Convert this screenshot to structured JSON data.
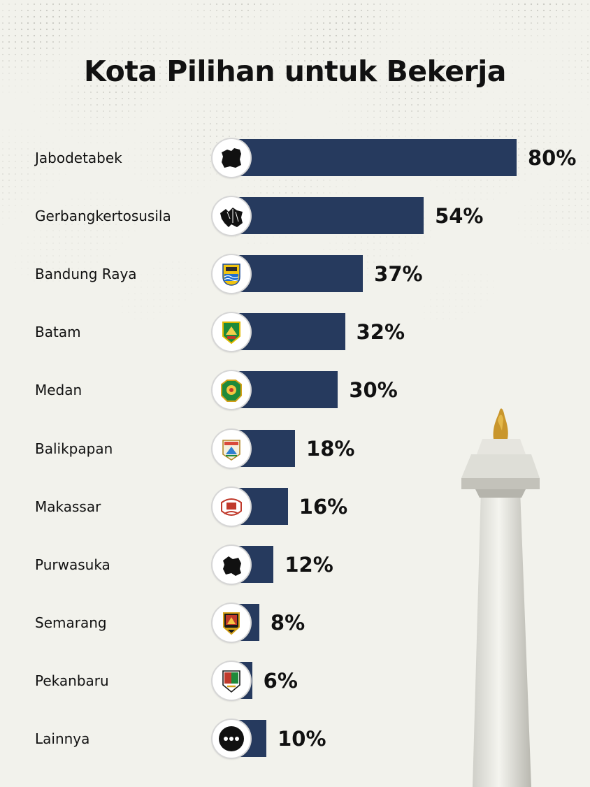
{
  "title": "Kota Pilihan untuk Bekerja",
  "colors": {
    "bar": "#263a5e",
    "background": "#f2f2ec",
    "text": "#111111"
  },
  "chart_data": {
    "type": "bar",
    "orientation": "horizontal",
    "title": "Kota Pilihan untuk Bekerja",
    "unit": "%",
    "xlim": [
      0,
      80
    ],
    "grid": false,
    "legend": "none",
    "categories": [
      "Jabodetabek",
      "Gerbangkertosusila",
      "Bandung Raya",
      "Batam",
      "Medan",
      "Balikpapan",
      "Makassar",
      "Purwasuka",
      "Semarang",
      "Pekanbaru",
      "Lainnya"
    ],
    "values": [
      80,
      54,
      37,
      32,
      30,
      18,
      16,
      12,
      8,
      6,
      10
    ],
    "value_labels": [
      "80%",
      "54%",
      "37%",
      "32%",
      "30%",
      "18%",
      "16%",
      "12%",
      "8%",
      "6%",
      "10%"
    ],
    "icons": [
      "jabodetabek-map-icon",
      "gerbangkertosusila-map-icon",
      "bandung-emblem-icon",
      "batam-emblem-icon",
      "medan-emblem-icon",
      "balikpapan-emblem-icon",
      "makassar-emblem-icon",
      "purwasuka-map-icon",
      "semarang-emblem-icon",
      "pekanbaru-emblem-icon",
      "more-dots-icon"
    ]
  }
}
